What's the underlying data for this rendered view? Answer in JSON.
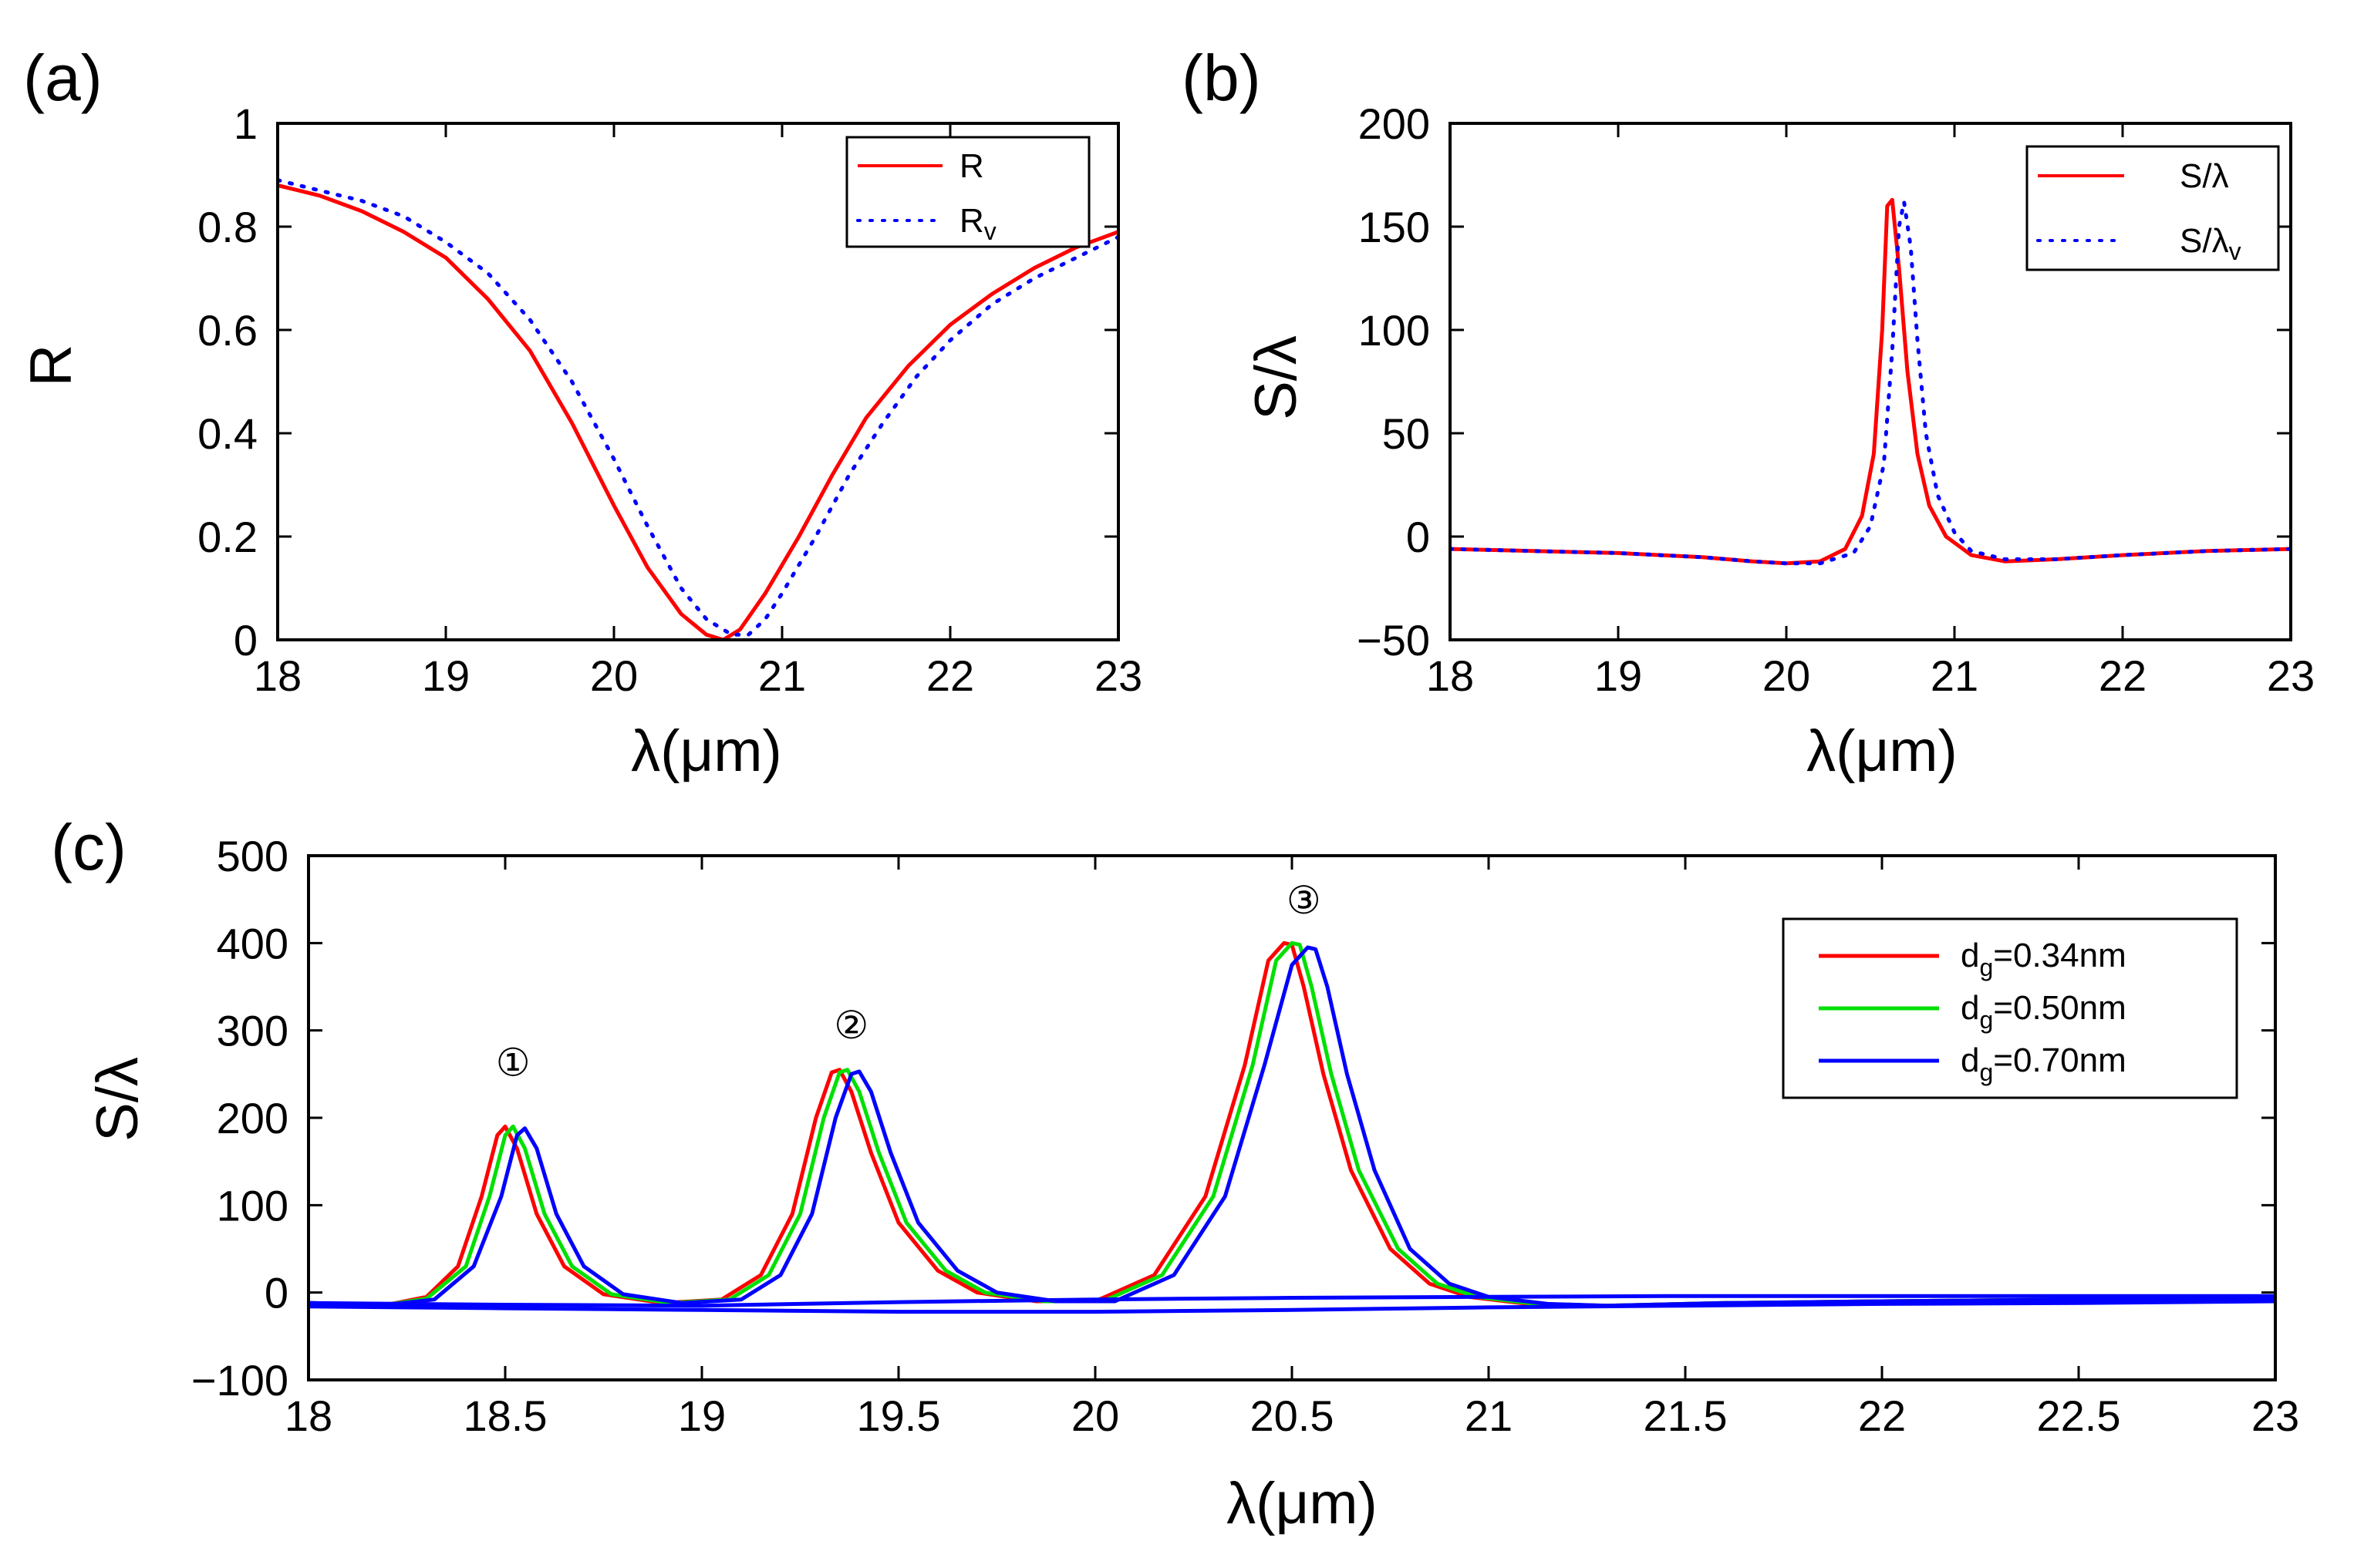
{
  "chart_data": [
    {
      "panel": "(a)",
      "type": "line",
      "title": "",
      "xlabel": "λ(μm)",
      "ylabel": "R",
      "xlim": [
        18,
        23
      ],
      "ylim": [
        0,
        1
      ],
      "xticks": [
        18,
        19,
        20,
        21,
        22,
        23
      ],
      "xtick_labels": [
        "18",
        "19",
        "20",
        "21",
        "22",
        "23"
      ],
      "yticks": [
        0,
        0.2,
        0.4,
        0.6,
        0.8,
        1
      ],
      "ytick_labels": [
        "0",
        "0.2",
        "0.4",
        "0.6",
        "0.8",
        "1"
      ],
      "legend_position": "top-right",
      "series": [
        {
          "name": "R",
          "name_sub": "",
          "color": "#ff0000",
          "style": "solid",
          "x": [
            18.0,
            18.25,
            18.5,
            18.75,
            19.0,
            19.25,
            19.5,
            19.75,
            20.0,
            20.2,
            20.4,
            20.55,
            20.65,
            20.75,
            20.9,
            21.1,
            21.3,
            21.5,
            21.75,
            22.0,
            22.25,
            22.5,
            22.75,
            23.0
          ],
          "y": [
            0.88,
            0.86,
            0.83,
            0.79,
            0.74,
            0.66,
            0.56,
            0.42,
            0.26,
            0.14,
            0.05,
            0.01,
            0.0,
            0.02,
            0.09,
            0.2,
            0.32,
            0.43,
            0.53,
            0.61,
            0.67,
            0.72,
            0.76,
            0.79
          ]
        },
        {
          "name": "R",
          "name_sub": "v",
          "color": "#0000ff",
          "style": "dotted",
          "x": [
            18.0,
            18.25,
            18.5,
            18.75,
            19.0,
            19.25,
            19.5,
            19.75,
            20.0,
            20.2,
            20.4,
            20.55,
            20.7,
            20.8,
            20.9,
            21.0,
            21.2,
            21.4,
            21.6,
            21.8,
            22.0,
            22.25,
            22.5,
            22.75,
            23.0
          ],
          "y": [
            0.89,
            0.87,
            0.85,
            0.82,
            0.77,
            0.71,
            0.62,
            0.5,
            0.35,
            0.22,
            0.1,
            0.04,
            0.01,
            0.01,
            0.04,
            0.09,
            0.2,
            0.32,
            0.42,
            0.51,
            0.58,
            0.65,
            0.7,
            0.74,
            0.78
          ]
        }
      ]
    },
    {
      "panel": "(b)",
      "type": "line",
      "title": "",
      "xlabel": "λ(μm)",
      "ylabel": "S/λ",
      "xlim": [
        18,
        23
      ],
      "ylim": [
        -50,
        200
      ],
      "xticks": [
        18,
        19,
        20,
        21,
        22,
        23
      ],
      "xtick_labels": [
        "18",
        "19",
        "20",
        "21",
        "22",
        "23"
      ],
      "yticks": [
        -50,
        0,
        50,
        100,
        150,
        200
      ],
      "ytick_labels": [
        "−50",
        "0",
        "50",
        "100",
        "150",
        "200"
      ],
      "legend_position": "top-right",
      "series": [
        {
          "name": "S/λ",
          "name_sub": "",
          "color": "#ff0000",
          "style": "solid",
          "x": [
            18.0,
            18.5,
            19.0,
            19.5,
            19.8,
            20.0,
            20.2,
            20.35,
            20.45,
            20.52,
            20.57,
            20.6,
            20.63,
            20.67,
            20.72,
            20.78,
            20.85,
            20.95,
            21.1,
            21.3,
            21.6,
            22.0,
            22.5,
            23.0
          ],
          "y": [
            -6,
            -7,
            -8,
            -10,
            -12,
            -13,
            -12,
            -6,
            10,
            40,
            100,
            160,
            163,
            130,
            80,
            40,
            15,
            0,
            -9,
            -12,
            -11,
            -9,
            -7,
            -6
          ]
        },
        {
          "name": "S/λ",
          "name_sub": "v",
          "color": "#0000ff",
          "style": "dotted",
          "x": [
            18.0,
            18.5,
            19.0,
            19.5,
            19.8,
            20.0,
            20.2,
            20.4,
            20.5,
            20.58,
            20.63,
            20.67,
            20.7,
            20.74,
            20.78,
            20.83,
            20.9,
            21.0,
            21.1,
            21.3,
            21.6,
            22.0,
            22.5,
            23.0
          ],
          "y": [
            -6,
            -7,
            -8,
            -10,
            -12,
            -13,
            -13,
            -8,
            5,
            35,
            90,
            150,
            162,
            140,
            95,
            50,
            20,
            2,
            -7,
            -11,
            -11,
            -9,
            -7,
            -6
          ]
        }
      ]
    },
    {
      "panel": "(c)",
      "type": "line",
      "title": "",
      "xlabel": "λ(μm)",
      "ylabel": "S/λ",
      "xlim": [
        18,
        23
      ],
      "ylim": [
        -100,
        500
      ],
      "xticks": [
        18,
        18.5,
        19,
        19.5,
        20,
        20.5,
        21,
        21.5,
        22,
        22.5,
        23
      ],
      "xtick_labels": [
        "18",
        "18.5",
        "19",
        "19.5",
        "20",
        "20.5",
        "21",
        "21.5",
        "22",
        "22.5",
        "23"
      ],
      "yticks": [
        -100,
        0,
        100,
        200,
        300,
        400,
        500
      ],
      "ytick_labels": [
        "−100",
        "0",
        "100",
        "200",
        "300",
        "400",
        "500"
      ],
      "legend_position": "top-right",
      "peak_labels": [
        {
          "text": "①",
          "x": 18.52,
          "y": 262
        },
        {
          "text": "②",
          "x": 19.38,
          "y": 305
        },
        {
          "text": "③",
          "x": 20.53,
          "y": 448
        }
      ],
      "series": [
        {
          "name": "d",
          "name_sub": "g",
          "name_suffix": "=0.34nm",
          "color": "#ff0000",
          "style": "solid",
          "x": [
            18.0,
            18.2,
            18.3,
            18.38,
            18.44,
            18.48,
            18.5,
            18.53,
            18.58,
            18.65,
            18.75,
            18.9,
            19.05,
            19.15,
            19.23,
            19.29,
            19.33,
            19.35,
            19.38,
            19.43,
            19.5,
            19.6,
            19.7,
            19.85,
            20.0,
            20.15,
            20.28,
            20.38,
            20.44,
            20.48,
            20.5,
            20.53,
            20.58,
            20.65,
            20.75,
            20.85,
            20.95,
            21.1,
            21.3,
            21.6,
            22.0,
            22.5,
            23.0
          ],
          "y": [
            -12,
            -14,
            -5,
            30,
            110,
            180,
            190,
            165,
            90,
            30,
            -2,
            -12,
            -8,
            20,
            90,
            200,
            252,
            255,
            230,
            160,
            80,
            25,
            0,
            -10,
            -10,
            20,
            110,
            260,
            380,
            400,
            398,
            350,
            250,
            140,
            50,
            10,
            -5,
            -13,
            -15,
            -12,
            -10,
            -8,
            -7
          ]
        },
        {
          "name": "d",
          "name_sub": "g",
          "name_suffix": "=0.50nm",
          "color": "#00e000",
          "style": "solid",
          "x": [
            18.0,
            18.2,
            18.3,
            18.4,
            18.46,
            18.5,
            18.52,
            18.55,
            18.6,
            18.67,
            18.77,
            18.92,
            19.07,
            19.17,
            19.25,
            19.31,
            19.35,
            19.37,
            19.4,
            19.45,
            19.52,
            19.62,
            19.72,
            19.87,
            20.02,
            20.17,
            20.3,
            20.4,
            20.46,
            20.5,
            20.52,
            20.55,
            20.6,
            20.67,
            20.77,
            20.87,
            20.97,
            21.12,
            21.3,
            21.6,
            22.0,
            22.5,
            23.0
          ],
          "y": [
            -12,
            -14,
            -7,
            30,
            110,
            180,
            190,
            165,
            90,
            30,
            -2,
            -12,
            -8,
            20,
            90,
            200,
            252,
            255,
            230,
            160,
            80,
            25,
            0,
            -10,
            -10,
            20,
            110,
            260,
            380,
            400,
            398,
            350,
            250,
            140,
            50,
            10,
            -5,
            -13,
            -15,
            -12,
            -10,
            -8,
            -7
          ]
        },
        {
          "name": "d",
          "name_sub": "g",
          "name_suffix": "=0.70nm",
          "color": "#0000ff",
          "style": "solid",
          "x": [
            18.0,
            18.2,
            18.32,
            18.42,
            18.49,
            18.53,
            18.55,
            18.58,
            18.63,
            18.7,
            18.8,
            18.95,
            19.1,
            19.2,
            19.28,
            19.34,
            19.38,
            19.4,
            19.43,
            19.48,
            19.55,
            19.65,
            19.75,
            19.9,
            20.05,
            20.2,
            20.33,
            20.43,
            20.5,
            20.54,
            20.56,
            20.59,
            20.64,
            20.71,
            20.8,
            20.9,
            21.0,
            21.15,
            21.3,
            21.6,
            22.0,
            22.5,
            23.0
          ],
          "y": [
            -12,
            -14,
            -8,
            30,
            110,
            180,
            188,
            165,
            90,
            30,
            -2,
            -12,
            -8,
            20,
            90,
            200,
            250,
            253,
            230,
            160,
            80,
            25,
            0,
            -10,
            -10,
            20,
            110,
            260,
            375,
            395,
            393,
            350,
            250,
            140,
            50,
            10,
            -5,
            -13,
            -15,
            -12,
            -10,
            -8,
            -7
          ]
        },
        {
          "name": "",
          "name_sub": "",
          "name_suffix": "",
          "color": "#0000ff",
          "style": "solid",
          "x": [
            18.0,
            18.5,
            19.0,
            19.5,
            20.0,
            20.5,
            21.0,
            21.5,
            22.0,
            22.5,
            23.0
          ],
          "y": [
            -16,
            -18,
            -20,
            -22,
            -22,
            -20,
            -17,
            -15,
            -13,
            -12,
            -10
          ]
        },
        {
          "name": "",
          "name_sub": "",
          "name_suffix": "",
          "color": "#0000ff",
          "style": "solid",
          "x": [
            18.0,
            18.5,
            19.0,
            19.5,
            20.0,
            20.5,
            21.0,
            21.5,
            22.0,
            22.5,
            23.0
          ],
          "y": [
            -12,
            -14,
            -15,
            -11,
            -8,
            -6,
            -5,
            -4,
            -4,
            -4,
            -4
          ]
        }
      ]
    }
  ]
}
